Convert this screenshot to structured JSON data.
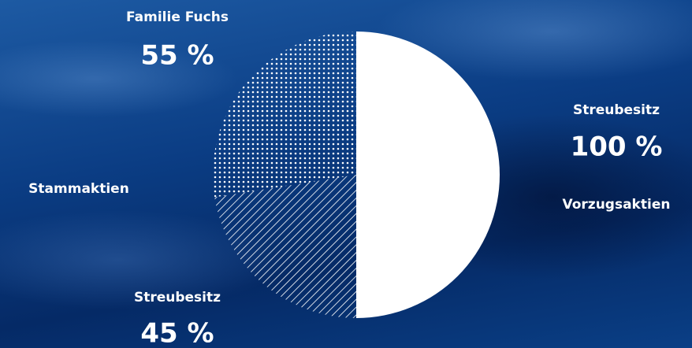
{
  "chart_data": {
    "type": "pie",
    "groups": [
      {
        "name": "Stammaktien",
        "categories": [
          "Familie Fuchs",
          "Streubesitz"
        ],
        "values": [
          55,
          45
        ],
        "value_labels": [
          "55 %",
          "45 %"
        ],
        "patterns": [
          "dots",
          "hatch"
        ],
        "color": "#ffffff"
      },
      {
        "name": "Vorzugsaktien",
        "categories": [
          "Streubesitz"
        ],
        "values": [
          100
        ],
        "value_labels": [
          "100 %"
        ],
        "patterns": [
          "solid"
        ],
        "color": "#ffffff"
      }
    ]
  }
}
